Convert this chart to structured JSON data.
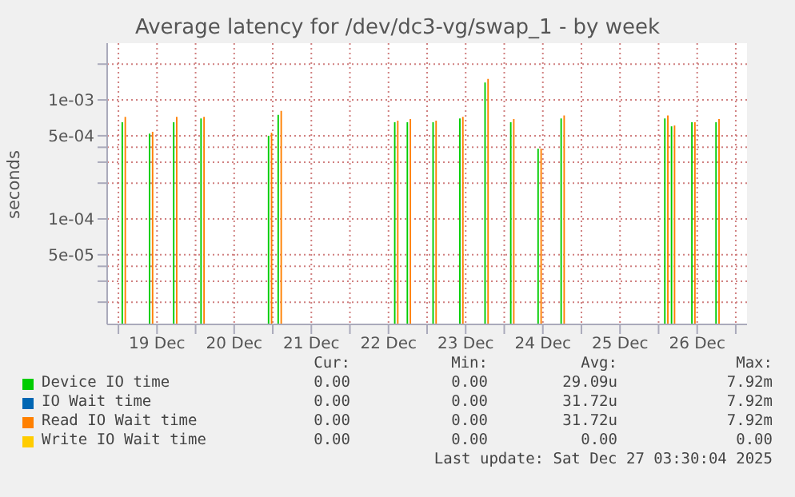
{
  "chart_data": {
    "type": "bar",
    "title": "Average latency for /dev/dc3-vg/swap_1 - by week",
    "ylabel": "seconds",
    "log": "y",
    "grid": true,
    "legend": "bottom",
    "ylim": [
      1.3e-05,
      0.003
    ],
    "yticks": [
      {
        "value": 0.002,
        "label": null
      },
      {
        "value": 0.001,
        "label": "1e-03"
      },
      {
        "value": 0.0005,
        "label": "5e-04"
      },
      {
        "value": 0.0004,
        "label": null
      },
      {
        "value": 0.0003,
        "label": null
      },
      {
        "value": 0.0002,
        "label": null
      },
      {
        "value": 0.0001,
        "label": "1e-04"
      },
      {
        "value": 5e-05,
        "label": "5e-05"
      },
      {
        "value": 4e-05,
        "label": null
      },
      {
        "value": 3e-05,
        "label": null
      },
      {
        "value": 2e-05,
        "label": null
      }
    ],
    "xlim": [
      "2025-12-18T20:30",
      "2025-12-27T03:30"
    ],
    "xticks": [
      {
        "value": "2025-12-19T00:00",
        "label": null
      },
      {
        "value": "2025-12-19T12:00",
        "label": "19 Dec"
      },
      {
        "value": "2025-12-20T00:00",
        "label": null
      },
      {
        "value": "2025-12-20T12:00",
        "label": "20 Dec"
      },
      {
        "value": "2025-12-21T00:00",
        "label": null
      },
      {
        "value": "2025-12-21T12:00",
        "label": "21 Dec"
      },
      {
        "value": "2025-12-22T00:00",
        "label": null
      },
      {
        "value": "2025-12-22T12:00",
        "label": "22 Dec"
      },
      {
        "value": "2025-12-23T00:00",
        "label": null
      },
      {
        "value": "2025-12-23T12:00",
        "label": "23 Dec"
      },
      {
        "value": "2025-12-24T00:00",
        "label": null
      },
      {
        "value": "2025-12-24T12:00",
        "label": "24 Dec"
      },
      {
        "value": "2025-12-25T00:00",
        "label": null
      },
      {
        "value": "2025-12-25T12:00",
        "label": "25 Dec"
      },
      {
        "value": "2025-12-26T00:00",
        "label": null
      },
      {
        "value": "2025-12-26T12:00",
        "label": "26 Dec"
      },
      {
        "value": "2025-12-27T00:00",
        "label": null
      }
    ],
    "x": [
      "2025-12-19T02:00",
      "2025-12-19T10:30",
      "2025-12-19T18:00",
      "2025-12-20T02:30",
      "2025-12-20T23:30",
      "2025-12-21T02:30",
      "2025-12-22T14:45",
      "2025-12-22T18:40",
      "2025-12-23T02:40",
      "2025-12-23T11:00",
      "2025-12-23T18:50",
      "2025-12-24T02:50",
      "2025-12-24T11:20",
      "2025-12-24T18:30",
      "2025-12-26T02:45",
      "2025-12-26T04:50",
      "2025-12-26T11:10",
      "2025-12-26T18:40"
    ],
    "series": [
      {
        "name": "Device IO time",
        "color": "#00cc00",
        "values": [
          0.00065,
          0.00052,
          0.00065,
          0.0007,
          0.0005,
          0.00075,
          0.00065,
          0.00065,
          0.00065,
          0.0007,
          0.0014,
          0.00065,
          0.00039,
          0.0007,
          0.0007,
          0.0006,
          0.00065,
          0.00065
        ]
      },
      {
        "name": "IO Wait time",
        "color": "#0066b3",
        "values": [
          null,
          null,
          null,
          null,
          null,
          null,
          null,
          null,
          null,
          null,
          null,
          null,
          null,
          null,
          null,
          null,
          null,
          null
        ]
      },
      {
        "name": "Read IO Wait time",
        "color": "#ff8000",
        "values": [
          0.00072,
          0.00054,
          0.00072,
          0.00072,
          0.00053,
          0.00081,
          0.00067,
          0.00069,
          0.00067,
          0.00072,
          0.0015,
          0.00069,
          0.00039,
          0.00074,
          0.00074,
          0.00061,
          0.00065,
          0.00069
        ]
      },
      {
        "name": "Write IO Wait time",
        "color": "#ffcc00",
        "values": [
          null,
          null,
          null,
          null,
          null,
          null,
          null,
          null,
          null,
          null,
          null,
          null,
          null,
          null,
          null,
          null,
          null,
          null
        ]
      }
    ],
    "annotations": [
      "Cur:",
      "Min:",
      "Avg:",
      "Max:",
      "0.00",
      "0.00",
      "29.09u",
      "7.92m",
      "0.00",
      "0.00",
      "31.72u",
      "7.92m",
      "0.00",
      "0.00",
      "31.72u",
      "7.92m",
      "0.00",
      "0.00",
      "0.00",
      "0.00",
      "Last update: Sat Dec 27 03:30:04 2025"
    ]
  }
}
